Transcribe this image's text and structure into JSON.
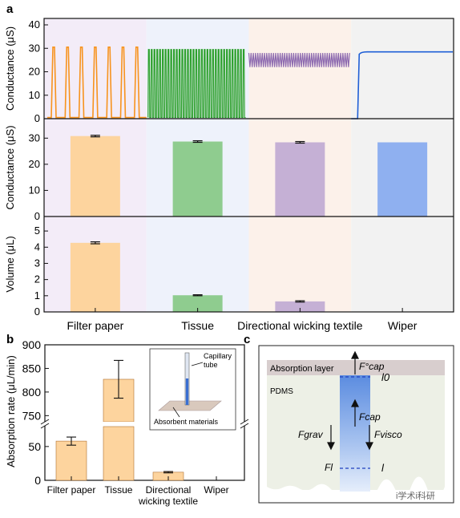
{
  "panel_labels": {
    "a": "a",
    "b": "b",
    "c": "c"
  },
  "colors": {
    "filter_paper": "#f7931e",
    "tissue": "#2ca02c",
    "directional": "#8e6bb0",
    "wiper": "#1f5fd6",
    "bar_filter": "#fdd49e",
    "bar_tissue": "#8fcc8f",
    "bar_directional": "#c5b0d5",
    "bar_wiper": "#8fb0f0",
    "bg_filter": "#f3ecf8",
    "bg_tissue": "#eef2fb",
    "bg_directional": "#fcf1ea",
    "bg_wiper": "#f2f2f2"
  },
  "chart_data": [
    {
      "id": "a-top",
      "type": "line",
      "ylabel": "Conductance (μS)",
      "ylim": [
        0,
        40
      ],
      "yticks": [
        "0",
        "10",
        "20",
        "30",
        "40"
      ],
      "series": [
        {
          "name": "Filter paper",
          "baseline": 0.5,
          "peak": 30.5,
          "peaks": 7
        },
        {
          "name": "Tissue",
          "low": 0.5,
          "high": 29.5,
          "cycles": 35
        },
        {
          "name": "Directional wicking textile",
          "low": 22,
          "high": 28,
          "cycles": 45
        },
        {
          "name": "Wiper",
          "start": 0,
          "plateau": 28.5
        }
      ]
    },
    {
      "id": "a-middle",
      "type": "bar",
      "ylabel": "Conductance (μS)",
      "ylim": [
        0,
        35
      ],
      "yticks": [
        "0",
        "10",
        "20",
        "30"
      ],
      "categories": [
        "Filter paper",
        "Tissue",
        "Directional wicking textile",
        "Wiper"
      ],
      "values": [
        30.8,
        28.7,
        28.4,
        28.4
      ],
      "errors": [
        0.3,
        0.3,
        0.3,
        0
      ]
    },
    {
      "id": "a-bottom",
      "type": "bar",
      "ylabel": "Volume (μL)",
      "ylim": [
        0,
        5.5
      ],
      "yticks": [
        "0",
        "1",
        "2",
        "3",
        "4",
        "5"
      ],
      "categories": [
        "Filter paper",
        "Tissue",
        "Directional wicking textile",
        "Wiper"
      ],
      "values": [
        4.27,
        1.03,
        0.65,
        0
      ],
      "errors": [
        0.06,
        0.03,
        0.04,
        0
      ]
    },
    {
      "id": "b",
      "type": "bar",
      "ylabel": "Absorption rate (μL/min)",
      "yticks_lower": [
        "0",
        "50"
      ],
      "yticks_upper": [
        "750",
        "800",
        "850",
        "900"
      ],
      "categories": [
        "Filter paper",
        "Tissue",
        "Directional\nwicking textile",
        "Wiper"
      ],
      "values": [
        58,
        827,
        12,
        0
      ],
      "errors": [
        6,
        40,
        1,
        0
      ],
      "inset": {
        "label_tube": "Capillary\ntube",
        "label_material": "Absorbent materials"
      }
    }
  ],
  "category_labels": [
    "Filter paper",
    "Tissue",
    "Directional wicking textile",
    "Wiper"
  ],
  "panel_c": {
    "absorption_layer": "Absorption layer",
    "pdms": "PDMS",
    "f_cap0": "F°cap",
    "l0": "l0",
    "f_cap": "Fcap",
    "f_grav": "Fgrav",
    "f_visco": "Fvisco",
    "f_l": "Fl",
    "l": "l"
  },
  "watermark": "i学术i科研"
}
